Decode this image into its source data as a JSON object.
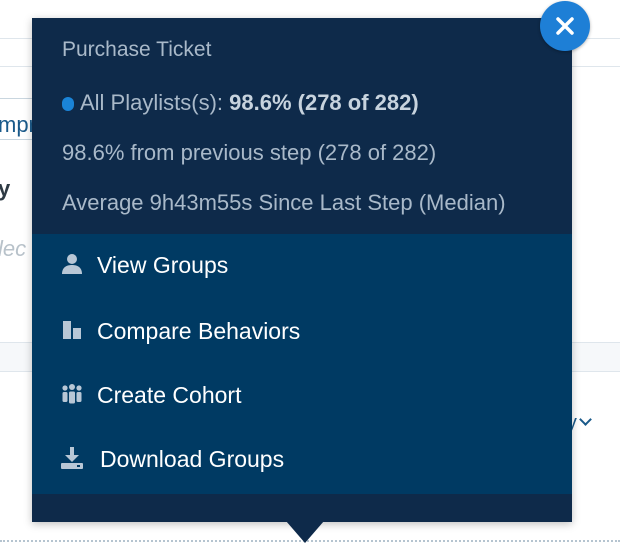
{
  "background": {
    "partial_text_improve": "mpro",
    "partial_text_y": "y",
    "partial_text_select": "lec",
    "interval_dropdown": "ily"
  },
  "popover": {
    "title": "Purchase Ticket",
    "series": {
      "name": "All Playlists(s):",
      "value": "98.6% (278 of 282)",
      "color": "#1a84d8"
    },
    "previous_step": "98.6% from previous step (278 of 282)",
    "average": "Average 9h43m55s Since Last Step (Median)",
    "close_icon": "close-icon",
    "menu": [
      {
        "label": "View Groups",
        "icon": "person-icon"
      },
      {
        "label": "Compare Behaviors",
        "icon": "compare-bars-icon"
      },
      {
        "label": "Create Cohort",
        "icon": "cohort-people-icon"
      },
      {
        "label": "Download Groups",
        "icon": "download-icon"
      }
    ]
  },
  "colors": {
    "popover_bg": "#0e2a4a",
    "menu_bg": "#003a63",
    "accent": "#1e7fd6",
    "info_text": "#a9b9c9"
  }
}
